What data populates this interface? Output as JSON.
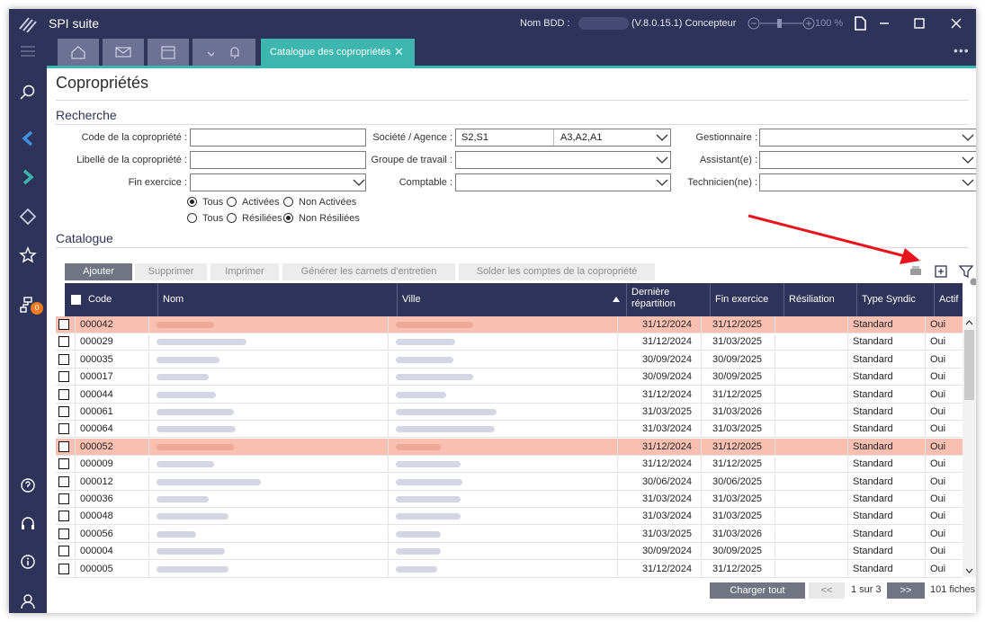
{
  "titlebar": {
    "app_name": "SPI suite",
    "db_label": "Nom BDD :",
    "version": "(V.8.0.15.1)",
    "role": "Concepteur",
    "zoom": "100 %"
  },
  "tabs": {
    "active_label": "Catalogue des copropriétés",
    "close_glyph": "✕",
    "more": "•••"
  },
  "page": {
    "title": "Copropriétés"
  },
  "search": {
    "heading": "Recherche",
    "code_label": "Code de la copropriété :",
    "code_value": "",
    "libelle_label": "Libellé de la copropriété :",
    "libelle_value": "",
    "fin_label": "Fin exercice :",
    "fin_value": "",
    "societe_label": "Société / Agence :",
    "societe_value": "S2,S1",
    "agence_value": "A3,A2,A1",
    "groupe_label": "Groupe de travail :",
    "groupe_value": "",
    "comptable_label": "Comptable :",
    "comptable_value": "",
    "gestionnaire_label": "Gestionnaire :",
    "assistant_label": "Assistant(e) :",
    "technicien_label": "Technicien(ne) :",
    "radio1": {
      "tous": "Tous",
      "actives": "Activées",
      "non_actives": "Non Activées",
      "selected": "tous"
    },
    "radio2": {
      "tous": "Tous",
      "resiliees": "Résiliées",
      "non_resiliees": "Non Résiliées",
      "selected": "non_resiliees"
    }
  },
  "catalogue": {
    "heading": "Catalogue",
    "buttons": {
      "ajouter": "Ajouter",
      "supprimer": "Supprimer",
      "imprimer": "Imprimer",
      "generer": "Générer les carnets d'entretien",
      "solder": "Solder les comptes de la copropriété"
    },
    "columns": [
      "Code",
      "Nom",
      "Ville",
      "Dernière répartition",
      "Fin exercice",
      "Résiliation",
      "Type Syndic",
      "Actif"
    ],
    "rows": [
      {
        "code": "000042",
        "repartition": "31/12/2024",
        "fin": "31/12/2025",
        "resiliation": "",
        "type": "Standard",
        "actif": "Oui",
        "highlight": true
      },
      {
        "code": "000029",
        "repartition": "31/12/2024",
        "fin": "31/03/2025",
        "resiliation": "",
        "type": "Standard",
        "actif": "Oui",
        "highlight": false
      },
      {
        "code": "000035",
        "repartition": "30/09/2024",
        "fin": "30/09/2025",
        "resiliation": "",
        "type": "Standard",
        "actif": "Oui",
        "highlight": false
      },
      {
        "code": "000017",
        "repartition": "30/09/2024",
        "fin": "30/09/2025",
        "resiliation": "",
        "type": "Standard",
        "actif": "Oui",
        "highlight": false
      },
      {
        "code": "000044",
        "repartition": "31/12/2024",
        "fin": "31/12/2025",
        "resiliation": "",
        "type": "Standard",
        "actif": "Oui",
        "highlight": false
      },
      {
        "code": "000061",
        "repartition": "31/03/2025",
        "fin": "31/03/2026",
        "resiliation": "",
        "type": "Standard",
        "actif": "Oui",
        "highlight": false
      },
      {
        "code": "000064",
        "repartition": "31/03/2024",
        "fin": "31/03/2025",
        "resiliation": "",
        "type": "Standard",
        "actif": "Oui",
        "highlight": false
      },
      {
        "code": "000052",
        "repartition": "31/12/2024",
        "fin": "31/12/2025",
        "resiliation": "",
        "type": "Standard",
        "actif": "Oui",
        "highlight": true
      },
      {
        "code": "000009",
        "repartition": "31/12/2024",
        "fin": "31/12/2025",
        "resiliation": "",
        "type": "Standard",
        "actif": "Oui",
        "highlight": false
      },
      {
        "code": "000012",
        "repartition": "30/06/2024",
        "fin": "30/06/2025",
        "resiliation": "",
        "type": "Standard",
        "actif": "Oui",
        "highlight": false
      },
      {
        "code": "000036",
        "repartition": "31/03/2024",
        "fin": "31/03/2025",
        "resiliation": "",
        "type": "Standard",
        "actif": "Oui",
        "highlight": false
      },
      {
        "code": "000048",
        "repartition": "31/03/2024",
        "fin": "31/03/2025",
        "resiliation": "",
        "type": "Standard",
        "actif": "Oui",
        "highlight": false
      },
      {
        "code": "000056",
        "repartition": "31/03/2025",
        "fin": "31/03/2026",
        "resiliation": "",
        "type": "Standard",
        "actif": "Oui",
        "highlight": false
      },
      {
        "code": "000004",
        "repartition": "30/09/2024",
        "fin": "30/09/2025",
        "resiliation": "",
        "type": "Standard",
        "actif": "Oui",
        "highlight": false
      },
      {
        "code": "000005",
        "repartition": "31/12/2024",
        "fin": "31/12/2025",
        "resiliation": "",
        "type": "Standard",
        "actif": "Oui",
        "highlight": false
      }
    ]
  },
  "pager": {
    "charger": "Charger tout",
    "prev": "<<",
    "page_info": "1 sur 3",
    "next": ">>",
    "count": "101 fiches"
  },
  "colors": {
    "navy": "#2e3359",
    "teal": "#3db6b0",
    "highlight_row": "#f9c0b1",
    "annotation_arrow": "#e8141b"
  },
  "icons": {
    "sidebar": [
      "search-icon",
      "chevron-left-icon",
      "chevron-right-icon",
      "diamond-icon",
      "star-icon",
      "network-icon",
      "help-icon",
      "headset-icon",
      "info-icon",
      "user-icon"
    ],
    "toolbar": [
      "print-icon",
      "expand-icon",
      "filter-icon"
    ]
  }
}
